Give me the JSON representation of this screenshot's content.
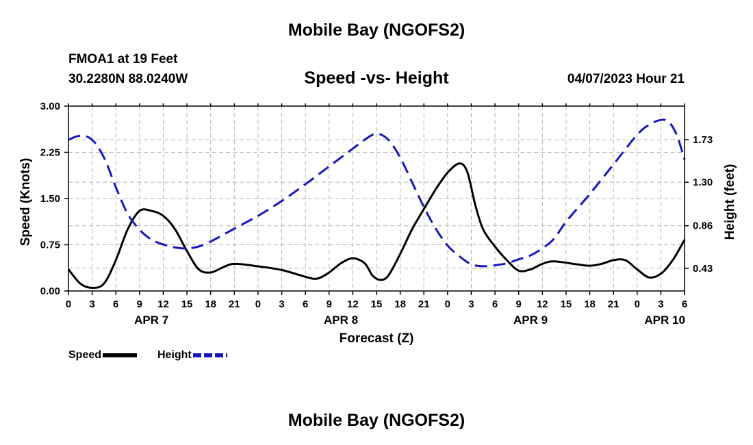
{
  "title": "Mobile Bay (NGOFS2)",
  "title_repeat": "Mobile Bay (NGOFS2)",
  "station": {
    "name": "FMOA1 at 19 Feet",
    "coords": "30.2280N  88.0240W"
  },
  "forecast_time": "04/07/2023 Hour 21",
  "colors": {
    "speed": "#000000",
    "height": "#1616c8",
    "grid": "#b4b4b4"
  },
  "legend": {
    "speed_label": "Speed",
    "height_label": "Height"
  },
  "chart_data": {
    "type": "line",
    "title": "Speed -vs- Height",
    "xlabel": "Forecast (Z)",
    "ylabel": "Speed (Knots)",
    "y2label": "Height (feet)",
    "xlim": [
      0,
      78
    ],
    "ylim": [
      0,
      3.0
    ],
    "y2lim": [
      0.2,
      2.07
    ],
    "x_ticks": [
      0,
      3,
      6,
      9,
      12,
      15,
      18,
      21,
      24,
      27,
      30,
      33,
      36,
      39,
      42,
      45,
      48,
      51,
      54,
      57,
      60,
      63,
      66,
      69,
      72,
      75,
      78
    ],
    "x_tick_labels": [
      "0",
      "3",
      "6",
      "9",
      "12",
      "15",
      "18",
      "21",
      "0",
      "3",
      "6",
      "9",
      "12",
      "15",
      "18",
      "21",
      "0",
      "3",
      "6",
      "9",
      "12",
      "15",
      "18",
      "21",
      "0",
      "3",
      "6"
    ],
    "date_labels": [
      {
        "x": 10.5,
        "label": "APR 7"
      },
      {
        "x": 34.5,
        "label": "APR 8"
      },
      {
        "x": 58.5,
        "label": "APR 9"
      },
      {
        "x": 75.5,
        "label": "APR 10"
      }
    ],
    "y_ticks": [
      0.0,
      0.75,
      1.5,
      2.25,
      3.0
    ],
    "y_tick_labels": [
      "0.00",
      "0.75",
      "1.50",
      "2.25",
      "3.00"
    ],
    "y2_ticks": [
      0.43,
      0.86,
      1.3,
      1.73
    ],
    "y2_tick_labels": [
      "0.43",
      "0.86",
      "1.30",
      "1.73"
    ],
    "series": [
      {
        "name": "Speed",
        "axis": "left",
        "style": "solid",
        "points": [
          [
            0,
            0.35
          ],
          [
            1.5,
            0.12
          ],
          [
            3,
            0.05
          ],
          [
            4.5,
            0.12
          ],
          [
            6,
            0.5
          ],
          [
            7.5,
            1.0
          ],
          [
            9,
            1.3
          ],
          [
            10.5,
            1.3
          ],
          [
            12,
            1.22
          ],
          [
            13.5,
            1.0
          ],
          [
            15,
            0.65
          ],
          [
            16.5,
            0.35
          ],
          [
            18,
            0.3
          ],
          [
            19.5,
            0.38
          ],
          [
            21,
            0.44
          ],
          [
            24,
            0.4
          ],
          [
            27,
            0.34
          ],
          [
            30,
            0.23
          ],
          [
            31.5,
            0.2
          ],
          [
            33,
            0.3
          ],
          [
            34.5,
            0.45
          ],
          [
            36,
            0.53
          ],
          [
            37.5,
            0.45
          ],
          [
            38.5,
            0.25
          ],
          [
            39.5,
            0.18
          ],
          [
            40.5,
            0.25
          ],
          [
            42,
            0.6
          ],
          [
            43.5,
            1.0
          ],
          [
            45,
            1.33
          ],
          [
            46.5,
            1.65
          ],
          [
            48,
            1.92
          ],
          [
            49.5,
            2.07
          ],
          [
            50.5,
            1.93
          ],
          [
            51.5,
            1.4
          ],
          [
            52.5,
            1.0
          ],
          [
            54,
            0.72
          ],
          [
            55.5,
            0.5
          ],
          [
            57,
            0.33
          ],
          [
            58.5,
            0.35
          ],
          [
            60,
            0.44
          ],
          [
            61.5,
            0.48
          ],
          [
            64.5,
            0.43
          ],
          [
            66,
            0.41
          ],
          [
            67.5,
            0.44
          ],
          [
            69,
            0.5
          ],
          [
            70.5,
            0.5
          ],
          [
            72,
            0.35
          ],
          [
            73.5,
            0.22
          ],
          [
            75,
            0.28
          ],
          [
            76.5,
            0.5
          ],
          [
            78,
            0.83
          ]
        ]
      },
      {
        "name": "Height",
        "axis": "right",
        "style": "dashed",
        "points": [
          [
            0,
            1.73
          ],
          [
            1.5,
            1.77
          ],
          [
            3,
            1.73
          ],
          [
            4.5,
            1.55
          ],
          [
            6,
            1.25
          ],
          [
            7.5,
            0.98
          ],
          [
            9,
            0.82
          ],
          [
            10.5,
            0.72
          ],
          [
            12,
            0.67
          ],
          [
            13.5,
            0.64
          ],
          [
            15,
            0.63
          ],
          [
            16.5,
            0.65
          ],
          [
            18,
            0.7
          ],
          [
            21,
            0.83
          ],
          [
            24,
            0.96
          ],
          [
            27,
            1.11
          ],
          [
            30,
            1.28
          ],
          [
            33,
            1.46
          ],
          [
            36,
            1.64
          ],
          [
            37.5,
            1.73
          ],
          [
            39,
            1.79
          ],
          [
            40.5,
            1.73
          ],
          [
            42,
            1.55
          ],
          [
            43.5,
            1.3
          ],
          [
            45,
            1.05
          ],
          [
            46.5,
            0.83
          ],
          [
            48,
            0.66
          ],
          [
            49.5,
            0.55
          ],
          [
            51,
            0.47
          ],
          [
            52.5,
            0.45
          ],
          [
            54,
            0.46
          ],
          [
            55.5,
            0.48
          ],
          [
            57,
            0.52
          ],
          [
            58.5,
            0.56
          ],
          [
            60,
            0.63
          ],
          [
            61.5,
            0.73
          ],
          [
            63,
            0.9
          ],
          [
            66,
            1.18
          ],
          [
            69,
            1.48
          ],
          [
            72,
            1.78
          ],
          [
            73.5,
            1.88
          ],
          [
            75,
            1.93
          ],
          [
            76,
            1.91
          ],
          [
            77,
            1.78
          ],
          [
            78,
            1.53
          ]
        ]
      }
    ]
  }
}
